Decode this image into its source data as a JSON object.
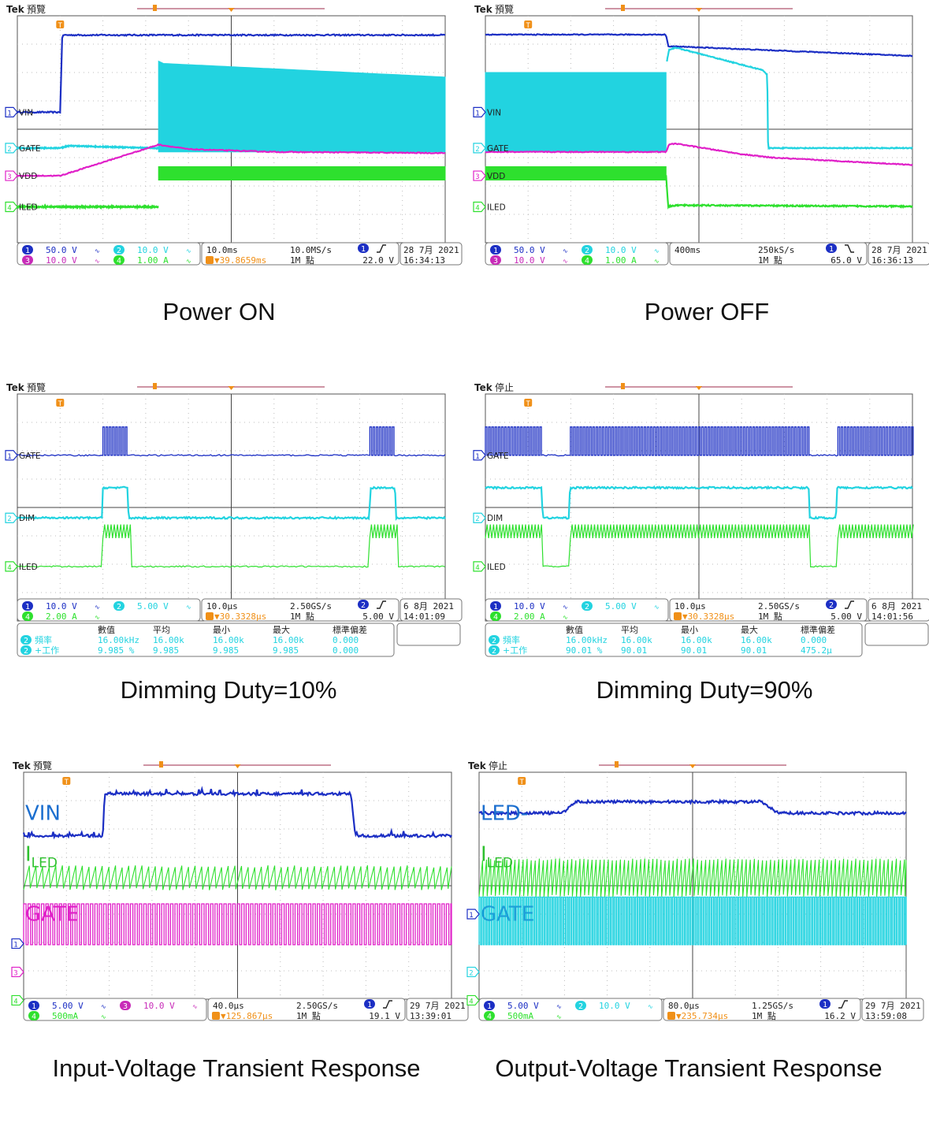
{
  "colors": {
    "ch1": "#1c2fc4",
    "ch2": "#22d3e0",
    "ch3": "#e020c8",
    "ch4": "#2ee02e",
    "grid": "#bcbcbc",
    "trigger": "#f09018",
    "frame": "#555555",
    "text_dark": "#222222"
  },
  "chart_data": [
    {
      "type": "line",
      "caption": "Power ON",
      "status": "預覽",
      "markers": [
        {
          "ch": "1",
          "label": "VIN"
        },
        {
          "ch": "2",
          "label": "GATE"
        },
        {
          "ch": "3",
          "label": "VDD"
        },
        {
          "ch": "4",
          "label": "ILED"
        }
      ],
      "channels": [
        {
          "ch": "1",
          "scale": "50.0 V",
          "color": "#1c2fc4"
        },
        {
          "ch": "2",
          "scale": "10.0 V",
          "color": "#22d3e0"
        },
        {
          "ch": "3",
          "scale": "10.0 V",
          "color": "#c82bb8"
        },
        {
          "ch": "4",
          "scale": "1.00 A",
          "color": "#2ee02e"
        }
      ],
      "timebase": "10.0ms",
      "sample_rate": "10.0MS/s",
      "delay": "▼39.8659ms",
      "record": "1M 點",
      "trig_ch": "1",
      "trig_slope": "rise",
      "trig_level": "22.0 V",
      "date": "28 7月  2021",
      "time": "16:34:13",
      "series": [
        {
          "name": "VIN",
          "color": "#1c2fc4",
          "kind": "line",
          "x": [
            0,
            0.1,
            0.105,
            1
          ],
          "y": [
            0.575,
            0.575,
            0.915,
            0.915
          ],
          "noise": 0.003
        },
        {
          "name": "GATE",
          "color": "#22d3e0",
          "kind": "line",
          "x": [
            0,
            0.1,
            0.12,
            0.32,
            0.33
          ],
          "y": [
            0.417,
            0.417,
            0.427,
            0.417,
            0.417
          ],
          "noise": 0.002
        },
        {
          "name": "GATE switching",
          "color": "#22d3e0",
          "kind": "band",
          "x": [
            0.33,
            0.34,
            1
          ],
          "top": [
            0.8,
            0.79,
            0.73
          ],
          "bottom": [
            0.4,
            0.4,
            0.4
          ]
        },
        {
          "name": "VDD",
          "color": "#e020c8",
          "kind": "line",
          "x": [
            0,
            0.1,
            0.33,
            0.4,
            0.6,
            1
          ],
          "y": [
            0.295,
            0.295,
            0.432,
            0.412,
            0.4,
            0.395
          ],
          "noise": 0.002
        },
        {
          "name": "ILED",
          "color": "#2ee02e",
          "kind": "line",
          "x": [
            0,
            0.33
          ],
          "y": [
            0.158,
            0.158
          ],
          "noise": 0.003
        },
        {
          "name": "ILED ripple",
          "color": "#2ee02e",
          "kind": "band",
          "x": [
            0.33,
            1
          ],
          "top": [
            0.335,
            0.335
          ],
          "bottom": [
            0.276,
            0.276
          ]
        }
      ]
    },
    {
      "type": "line",
      "caption": "Power OFF",
      "status": "預覽",
      "markers": [
        {
          "ch": "1",
          "label": "VIN"
        },
        {
          "ch": "2",
          "label": "GATE"
        },
        {
          "ch": "3",
          "label": "VDD"
        },
        {
          "ch": "4",
          "label": "ILED"
        }
      ],
      "channels": [
        {
          "ch": "1",
          "scale": "50.0 V",
          "color": "#1c2fc4"
        },
        {
          "ch": "2",
          "scale": "10.0 V",
          "color": "#22d3e0"
        },
        {
          "ch": "3",
          "scale": "10.0 V",
          "color": "#c82bb8"
        },
        {
          "ch": "4",
          "scale": "1.00 A",
          "color": "#2ee02e"
        }
      ],
      "timebase": "400ms",
      "sample_rate": "250kS/s",
      "delay": "",
      "record": "1M 點",
      "trig_ch": "1",
      "trig_slope": "fall",
      "trig_level": "65.0 V",
      "date": "28 7月  2021",
      "time": "16:36:13",
      "series": [
        {
          "name": "VIN",
          "color": "#1c2fc4",
          "kind": "line",
          "x": [
            0,
            0.423,
            0.428,
            1
          ],
          "y": [
            0.917,
            0.917,
            0.866,
            0.823
          ],
          "noise": 0.002
        },
        {
          "name": "GATE switching",
          "color": "#22d3e0",
          "kind": "band",
          "x": [
            0,
            0.423
          ],
          "top": [
            0.75,
            0.75
          ],
          "bottom": [
            0.4,
            0.4
          ]
        },
        {
          "name": "GATE",
          "color": "#22d3e0",
          "kind": "line",
          "x": [
            0.425,
            0.43,
            0.445,
            0.65,
            0.66,
            0.662,
            1
          ],
          "y": [
            0.8,
            0.85,
            0.86,
            0.76,
            0.74,
            0.417,
            0.417
          ],
          "noise": 0.002
        },
        {
          "name": "VDD",
          "color": "#e020c8",
          "kind": "line",
          "x": [
            0,
            0.423,
            0.43,
            0.445,
            0.6,
            0.67,
            1
          ],
          "y": [
            0.4,
            0.4,
            0.432,
            0.437,
            0.39,
            0.375,
            0.343
          ],
          "noise": 0.002
        },
        {
          "name": "ILED ripple",
          "color": "#2ee02e",
          "kind": "band",
          "x": [
            0,
            0.423
          ],
          "top": [
            0.335,
            0.335
          ],
          "bottom": [
            0.276,
            0.276
          ]
        },
        {
          "name": "ILED",
          "color": "#2ee02e",
          "kind": "line",
          "x": [
            0.423,
            0.428,
            0.45,
            1
          ],
          "y": [
            0.3,
            0.16,
            0.165,
            0.16
          ],
          "noise": 0.003
        }
      ]
    },
    {
      "type": "line",
      "caption": "Dimming Duty=10%",
      "status": "預覽",
      "markers": [
        {
          "ch": "1",
          "label": "GATE"
        },
        {
          "ch": "2",
          "label": "DIM"
        },
        {
          "ch": "4",
          "label": "ILED"
        }
      ],
      "channels": [
        {
          "ch": "1",
          "scale": "10.0 V",
          "color": "#1c2fc4"
        },
        {
          "ch": "2",
          "scale": "5.00 V",
          "color": "#22d3e0"
        },
        {
          "ch": "4",
          "scale": "2.00 A",
          "color": "#2ee02e"
        }
      ],
      "timebase": "10.0µs",
      "sample_rate": "2.50GS/s",
      "delay": "▼30.3328µs",
      "record": "1M 點",
      "trig_ch": "2",
      "trig_slope": "rise",
      "trig_level": "5.00 V",
      "date": "6 8月  2021",
      "time": "14:01:09",
      "measure": {
        "headers": [
          "數值",
          "平均",
          "最小",
          "最大",
          "標準偏差"
        ],
        "rows": [
          {
            "ch": "2",
            "label": "頻率",
            "values": [
              "16.00kHz",
              "16.00k",
              "16.00k",
              "16.00k",
              "0.000"
            ]
          },
          {
            "ch": "2",
            "label": "+工作",
            "values": [
              "9.985 %",
              "9.985",
              "9.985",
              "9.985",
              "0.000"
            ]
          }
        ]
      },
      "series": [
        {
          "name": "GATE",
          "color": "#1c2fc4",
          "kind": "pulses",
          "base": 0.73,
          "high": 0.855,
          "windows": [
            [
              0.198,
              0.258
            ],
            [
              0.823,
              0.883
            ]
          ],
          "period": 0.0075
        },
        {
          "name": "DIM",
          "color": "#22d3e0",
          "kind": "line",
          "x": [
            0,
            0.198,
            0.2,
            0.258,
            0.26,
            0.823,
            0.825,
            0.883,
            0.885,
            1
          ],
          "y": [
            0.454,
            0.454,
            0.587,
            0.587,
            0.454,
            0.454,
            0.587,
            0.587,
            0.454,
            0.454
          ],
          "noise": 0.004
        },
        {
          "name": "ILED",
          "color": "#2ee02e",
          "kind": "ripple",
          "base": 0.24,
          "low": 0.365,
          "high": 0.425,
          "windows": [
            [
              0.198,
              0.265
            ],
            [
              0.823,
              0.89
            ]
          ],
          "period": 0.0075
        }
      ]
    },
    {
      "type": "line",
      "caption": "Dimming Duty=90%",
      "status": "停止",
      "markers": [
        {
          "ch": "1",
          "label": "GATE"
        },
        {
          "ch": "2",
          "label": "DIM"
        },
        {
          "ch": "4",
          "label": "ILED"
        }
      ],
      "channels": [
        {
          "ch": "1",
          "scale": "10.0 V",
          "color": "#1c2fc4"
        },
        {
          "ch": "2",
          "scale": "5.00 V",
          "color": "#22d3e0"
        },
        {
          "ch": "4",
          "scale": "2.00 A",
          "color": "#2ee02e"
        }
      ],
      "timebase": "10.0µs",
      "sample_rate": "2.50GS/s",
      "delay": "▼30.3328µs",
      "record": "1M 點",
      "trig_ch": "2",
      "trig_slope": "rise",
      "trig_level": "5.00 V",
      "date": "6 8月  2021",
      "time": "14:01:56",
      "measure": {
        "headers": [
          "數值",
          "平均",
          "最小",
          "最大",
          "標準偏差"
        ],
        "rows": [
          {
            "ch": "2",
            "label": "頻率",
            "values": [
              "16.00kHz",
              "16.00k",
              "16.00k",
              "16.00k",
              "0.000"
            ]
          },
          {
            "ch": "2",
            "label": "+工作",
            "values": [
              "90.01 %",
              "90.01",
              "90.01",
              "90.01",
              "475.2µ"
            ]
          }
        ]
      },
      "series": [
        {
          "name": "GATE",
          "color": "#1c2fc4",
          "kind": "pulses",
          "base": 0.73,
          "high": 0.855,
          "windows": [
            [
              0,
              0.132
            ],
            [
              0.198,
              0.757
            ],
            [
              0.823,
              1
            ]
          ],
          "period": 0.0075
        },
        {
          "name": "DIM",
          "color": "#22d3e0",
          "kind": "line",
          "x": [
            0,
            0.132,
            0.134,
            0.196,
            0.198,
            0.757,
            0.759,
            0.821,
            0.823,
            1
          ],
          "y": [
            0.587,
            0.587,
            0.454,
            0.454,
            0.587,
            0.587,
            0.454,
            0.454,
            0.587,
            0.587
          ],
          "noise": 0.004
        },
        {
          "name": "ILED",
          "color": "#2ee02e",
          "kind": "ripple",
          "base": 0.24,
          "low": 0.365,
          "high": 0.425,
          "windows": [
            [
              0,
              0.132
            ],
            [
              0.198,
              0.757
            ],
            [
              0.823,
              1
            ]
          ],
          "period": 0.0075
        }
      ]
    },
    {
      "type": "line",
      "caption": "Input-Voltage Transient Response",
      "status": "預覽",
      "markers": [
        {
          "ch": "1",
          "label": ""
        },
        {
          "ch": "3",
          "label": ""
        },
        {
          "ch": "4",
          "label": ""
        }
      ],
      "trace_labels": [
        {
          "text": "VIN",
          "sub": "",
          "color": "#1c6fcf"
        },
        {
          "text": "I",
          "sub": "LED",
          "color": "#2ec02e"
        },
        {
          "text": "GATE",
          "sub": "",
          "color": "#e020c8"
        }
      ],
      "channels": [
        {
          "ch": "1",
          "scale": "5.00 V",
          "color": "#1c2fc4"
        },
        {
          "ch": "3",
          "scale": "10.0 V",
          "color": "#c82bb8"
        },
        {
          "ch": "4",
          "scale": "500mA",
          "color": "#2ee02e"
        }
      ],
      "timebase": "40.0µs",
      "sample_rate": "2.50GS/s",
      "delay": "▼125.867µs",
      "record": "1M 點",
      "trig_ch": "1",
      "trig_slope": "rise",
      "trig_level": "19.1 V",
      "date": "29 7月  2021",
      "time": "13:39:01",
      "series": [
        {
          "name": "VIN",
          "color": "#1c2fc4",
          "kind": "line",
          "x": [
            0,
            0.185,
            0.19,
            0.765,
            0.775,
            1
          ],
          "y": [
            0.72,
            0.72,
            0.905,
            0.905,
            0.72,
            0.72
          ],
          "noise": 0.006,
          "spikes": 0.016
        },
        {
          "name": "ILED",
          "color": "#2ee02e",
          "kind": "saw",
          "low": 0.485,
          "high": 0.585,
          "period": 0.0155,
          "x0": 0,
          "x1": 1
        },
        {
          "name": "GATE",
          "color": "#e020c8",
          "kind": "square",
          "low": 0.24,
          "high": 0.42,
          "period": 0.0104,
          "x0": 0,
          "x1": 1
        }
      ]
    },
    {
      "type": "line",
      "caption": "Output-Voltage Transient Response",
      "status": "停止",
      "markers": [
        {
          "ch": "1",
          "label": ""
        },
        {
          "ch": "2",
          "label": ""
        },
        {
          "ch": "4",
          "label": ""
        }
      ],
      "trace_labels": [
        {
          "text": "LED-",
          "sub": "",
          "color": "#1c6fcf"
        },
        {
          "text": "I",
          "sub": "LED",
          "color": "#2ec02e"
        },
        {
          "text": "GATE",
          "sub": "",
          "color": "#1c9fd8"
        }
      ],
      "channels": [
        {
          "ch": "1",
          "scale": "5.00 V",
          "color": "#1c2fc4"
        },
        {
          "ch": "2",
          "scale": "10.0 V",
          "color": "#22d3e0"
        },
        {
          "ch": "4",
          "scale": "500mA",
          "color": "#2ee02e"
        }
      ],
      "timebase": "80.0µs",
      "sample_rate": "1.25GS/s",
      "delay": "▼235.734µs",
      "record": "1M 點",
      "trig_ch": "1",
      "trig_slope": "rise",
      "trig_level": "16.2 V",
      "date": "29 7月  2021",
      "time": "13:59:08",
      "series": [
        {
          "name": "LED-",
          "color": "#1c2fc4",
          "kind": "line",
          "x": [
            0,
            0.195,
            0.225,
            0.66,
            0.7,
            1
          ],
          "y": [
            0.82,
            0.82,
            0.87,
            0.87,
            0.82,
            0.82
          ],
          "noise": 0.006
        },
        {
          "name": "ILED",
          "color": "#2ee02e",
          "kind": "saw",
          "low": 0.455,
          "high": 0.615,
          "period": 0.0095,
          "x0": 0,
          "x1": 1
        },
        {
          "name": "GATE",
          "color": "#22d3e0",
          "kind": "square",
          "low": 0.24,
          "high": 0.45,
          "period": 0.0062,
          "x0": 0,
          "x1": 1
        }
      ]
    }
  ]
}
